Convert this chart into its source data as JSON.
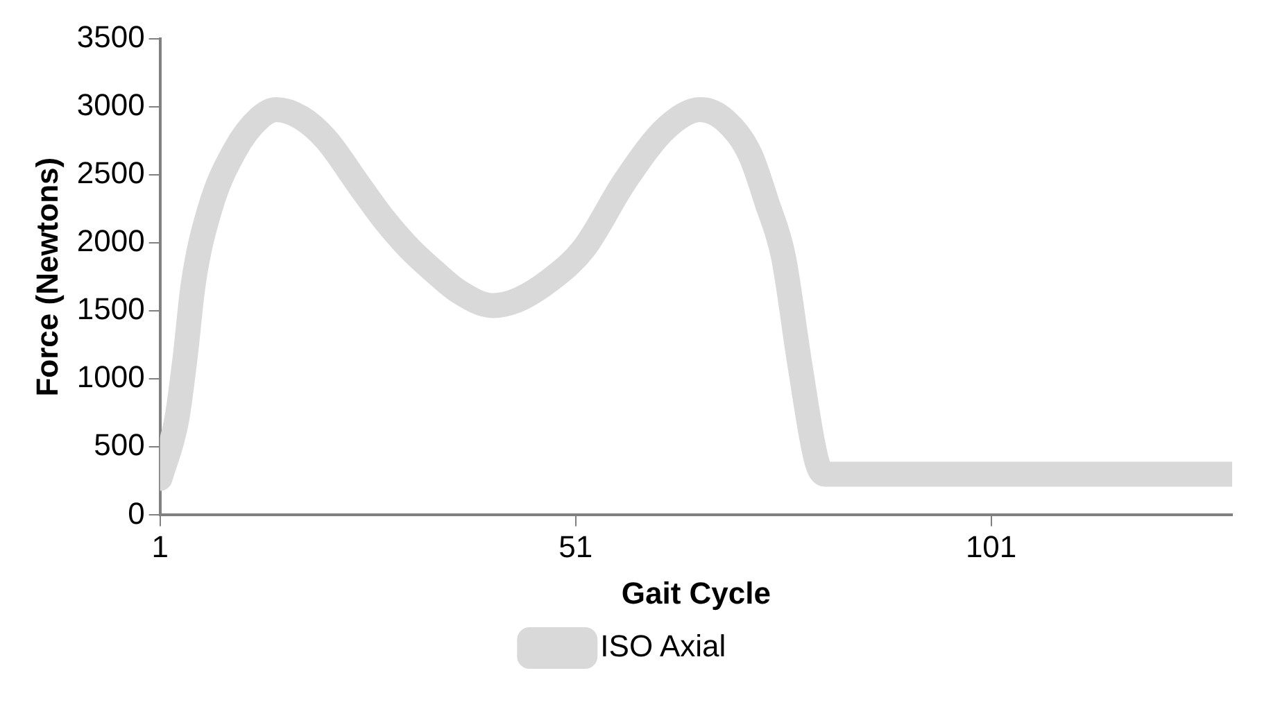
{
  "chart_data": {
    "type": "line",
    "xlabel": "Gait Cycle",
    "ylabel": "Force (Newtons)",
    "xlim": [
      1,
      130
    ],
    "xticks": [
      1,
      51,
      101
    ],
    "ylim": [
      0,
      3500
    ],
    "yticks": [
      0,
      500,
      1000,
      1500,
      2000,
      2500,
      3000,
      3500
    ],
    "grid": false,
    "legend": "bottom",
    "marker": "none",
    "line_style": "solid",
    "series": [
      {
        "name": "ISO Axial",
        "color": "#d9d9d9",
        "x": [
          1,
          3,
          4,
          5,
          7,
          10,
          13,
          15,
          18,
          21,
          25,
          28,
          31,
          34,
          37,
          41,
          44,
          48,
          52,
          57,
          62,
          66,
          69,
          72,
          74,
          76,
          78,
          80,
          81,
          90,
          100,
          110,
          120,
          130
        ],
        "values": [
          270,
          700,
          1150,
          1700,
          2250,
          2680,
          2920,
          2980,
          2920,
          2760,
          2420,
          2170,
          1960,
          1790,
          1640,
          1540,
          1580,
          1730,
          1960,
          2460,
          2850,
          2980,
          2900,
          2650,
          2300,
          1900,
          1100,
          400,
          300,
          300,
          300,
          300,
          300,
          300
        ]
      }
    ]
  }
}
